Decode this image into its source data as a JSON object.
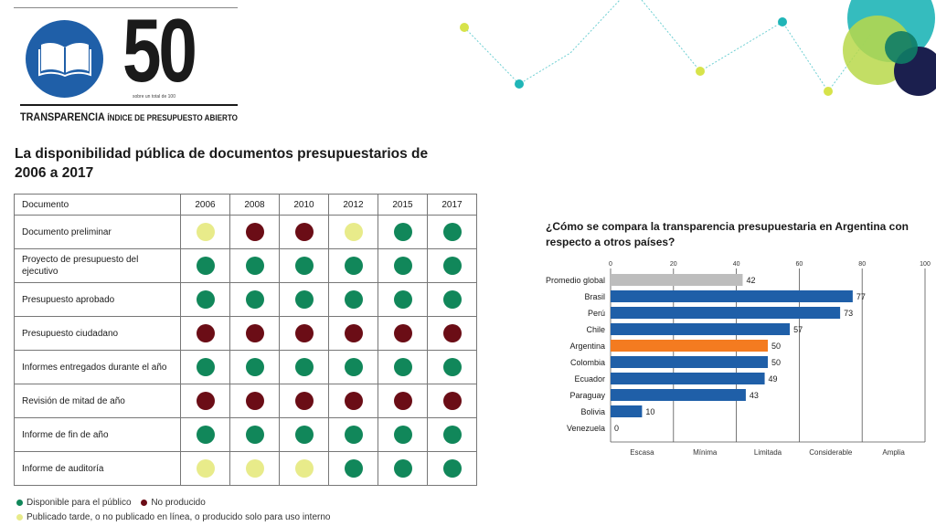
{
  "brand": {
    "score": "50",
    "score_subtitle": "sobre un total de 100",
    "title_main": "TRANSPARENCIA",
    "title_sub": "ÍNDICE DE PRESUPUESTO ABIERTO"
  },
  "colors": {
    "available": "#11875a",
    "not_produced": "#6b0d16",
    "late": "#e8eb8a",
    "bar_blue": "#1f5fa8",
    "bar_gray": "#bdbdbd",
    "bar_orange": "#f47b20"
  },
  "table": {
    "title": "La disponibilidad pública de documentos presupuestarios de 2006 a 2017",
    "header_label": "Documento",
    "years": [
      "2006",
      "2008",
      "2010",
      "2012",
      "2015",
      "2017"
    ],
    "rows": [
      {
        "label": "Documento preliminar",
        "status": [
          "late",
          "not_produced",
          "not_produced",
          "late",
          "available",
          "available"
        ]
      },
      {
        "label": "Proyecto de presupuesto del ejecutivo",
        "status": [
          "available",
          "available",
          "available",
          "available",
          "available",
          "available"
        ]
      },
      {
        "label": "Presupuesto aprobado",
        "status": [
          "available",
          "available",
          "available",
          "available",
          "available",
          "available"
        ]
      },
      {
        "label": "Presupuesto ciudadano",
        "status": [
          "not_produced",
          "not_produced",
          "not_produced",
          "not_produced",
          "not_produced",
          "not_produced"
        ]
      },
      {
        "label": "Informes entregados durante el año",
        "status": [
          "available",
          "available",
          "available",
          "available",
          "available",
          "available"
        ]
      },
      {
        "label": "Revisión de mitad de año",
        "status": [
          "not_produced",
          "not_produced",
          "not_produced",
          "not_produced",
          "not_produced",
          "not_produced"
        ]
      },
      {
        "label": "Informe de fin de año",
        "status": [
          "available",
          "available",
          "available",
          "available",
          "available",
          "available"
        ]
      },
      {
        "label": "Informe de auditoría",
        "status": [
          "late",
          "late",
          "late",
          "available",
          "available",
          "available"
        ]
      }
    ]
  },
  "legend": {
    "available": "Disponible para el público",
    "not_produced": "No producido",
    "late": "Publicado tarde, o no publicado en línea, o producido solo para uso interno"
  },
  "chart_title": "¿Cómo se compara la transparencia presupuestaria en Argentina con respecto a otros países?",
  "chart_data": {
    "type": "bar",
    "orientation": "horizontal",
    "categories": [
      "Promedio global",
      "Brasil",
      "Perú",
      "Chile",
      "Argentina",
      "Colombia",
      "Ecuador",
      "Paraguay",
      "Bolivia",
      "Venezuela"
    ],
    "values": [
      42,
      77,
      73,
      57,
      50,
      50,
      49,
      43,
      10,
      0
    ],
    "highlight": {
      "Promedio global": "gray",
      "Argentina": "orange"
    },
    "xlim": [
      0,
      100
    ],
    "x_ticks": [
      "0",
      "20",
      "40",
      "60",
      "80",
      "100"
    ],
    "bands": [
      "Escasa",
      "Mínima",
      "Limitada",
      "Considerable",
      "Amplia"
    ],
    "grid": true
  }
}
